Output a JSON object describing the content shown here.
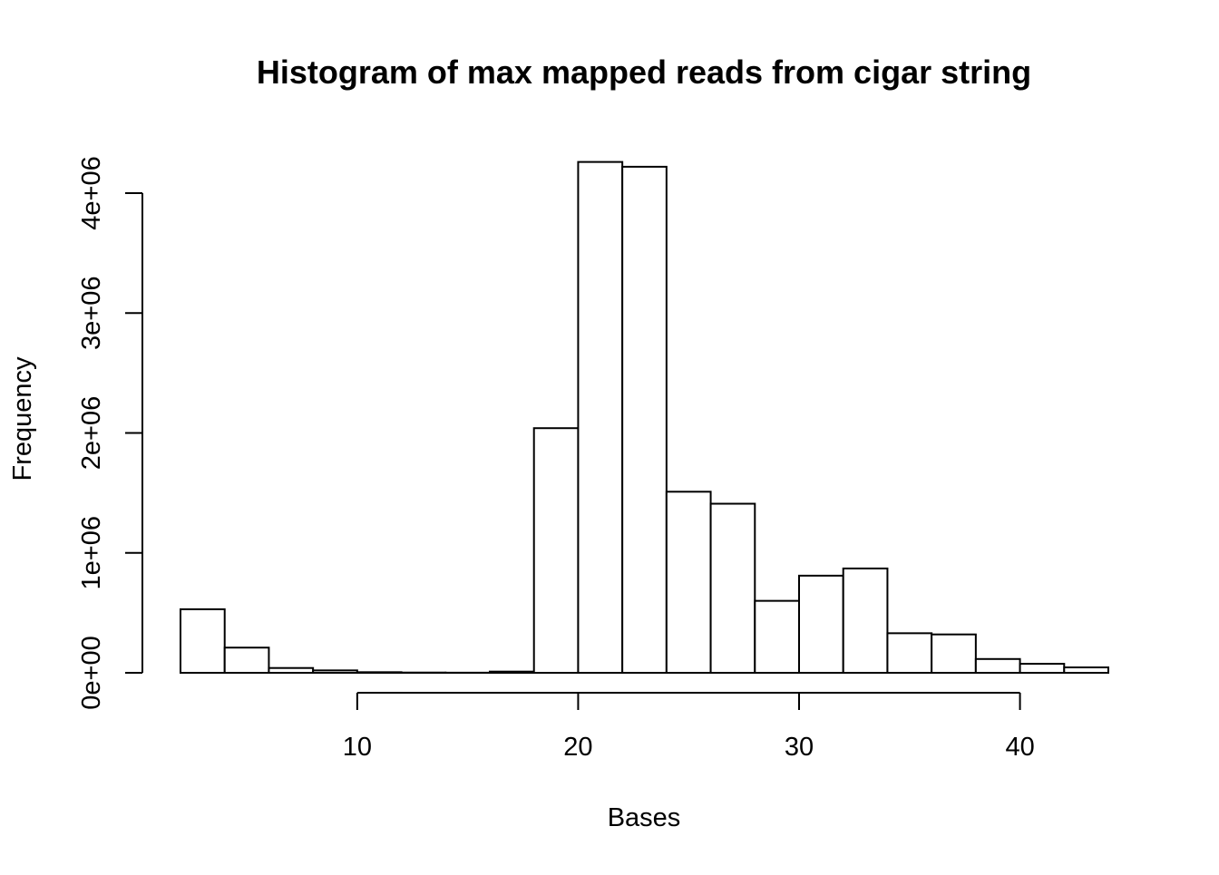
{
  "chart_data": {
    "type": "bar",
    "title": "Histogram of max mapped reads from cigar string",
    "xlabel": "Bases",
    "ylabel": "Frequency",
    "x_ticks": [
      10,
      20,
      30,
      40
    ],
    "y_ticks": [
      0,
      1000000,
      2000000,
      3000000,
      4000000
    ],
    "y_tick_labels": [
      "0e+00",
      "1e+06",
      "2e+06",
      "3e+06",
      "4e+06"
    ],
    "ylim": [
      0,
      4300000
    ],
    "bins": [
      {
        "start": 2,
        "end": 4,
        "value": 530000
      },
      {
        "start": 4,
        "end": 6,
        "value": 210000
      },
      {
        "start": 6,
        "end": 8,
        "value": 40000
      },
      {
        "start": 8,
        "end": 10,
        "value": 20000
      },
      {
        "start": 10,
        "end": 12,
        "value": 5000
      },
      {
        "start": 12,
        "end": 14,
        "value": 2000
      },
      {
        "start": 14,
        "end": 16,
        "value": 1000
      },
      {
        "start": 16,
        "end": 18,
        "value": 10000
      },
      {
        "start": 18,
        "end": 20,
        "value": 2040000
      },
      {
        "start": 20,
        "end": 22,
        "value": 4260000
      },
      {
        "start": 22,
        "end": 24,
        "value": 4220000
      },
      {
        "start": 24,
        "end": 26,
        "value": 1510000
      },
      {
        "start": 26,
        "end": 28,
        "value": 1410000
      },
      {
        "start": 28,
        "end": 30,
        "value": 600000
      },
      {
        "start": 30,
        "end": 32,
        "value": 810000
      },
      {
        "start": 32,
        "end": 34,
        "value": 870000
      },
      {
        "start": 34,
        "end": 36,
        "value": 330000
      },
      {
        "start": 36,
        "end": 38,
        "value": 320000
      },
      {
        "start": 38,
        "end": 40,
        "value": 115000
      },
      {
        "start": 40,
        "end": 42,
        "value": 75000
      },
      {
        "start": 42,
        "end": 44,
        "value": 45000
      }
    ],
    "grid": false,
    "legend": "none"
  }
}
